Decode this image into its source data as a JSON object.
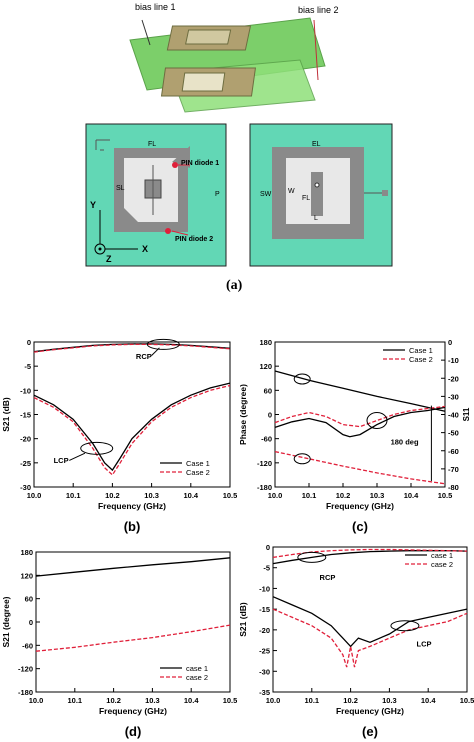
{
  "figure_a": {
    "bias_line_1": "bias line 1",
    "bias_line_2": "bias line 2",
    "fl_label": "FL",
    "sl_label": "SL",
    "pin_diode_1": "PIN diode 1",
    "pin_diode_2": "PIN diode 2",
    "y_axis": "Y",
    "x_axis": "X",
    "z_axis": "Z",
    "p_label": "P",
    "el_label": "EL",
    "sw_label": "SW",
    "wr_label": "W",
    "el2_label": "FL",
    "bottom_label": "L",
    "panel": "(a)"
  },
  "colors": {
    "substrate": "#62d7b5",
    "patch": "#8a8a8a",
    "slot": "#e8e8e8",
    "green3d": "#7ccf6a",
    "case1": "#000000",
    "case2": "#e0203a"
  },
  "chart_data": [
    {
      "id": "b",
      "panel": "(b)",
      "type": "line",
      "xlabel": "Frequency (GHz)",
      "ylabel": "S21 (dB)",
      "xlim": [
        10.0,
        10.5
      ],
      "ylim": [
        -30,
        0
      ],
      "xticks": [
        "10.0",
        "10.1",
        "10.2",
        "10.3",
        "10.4",
        "10.5"
      ],
      "yticks": [
        "0",
        "-5",
        "-10",
        "-15",
        "-20",
        "-25",
        "-30"
      ],
      "legend": "bottom-right",
      "annotations": [
        "RCP",
        "LCP"
      ],
      "series": [
        {
          "name": "Case 1",
          "color": "#000000",
          "dash": false,
          "x": [
            10.0,
            10.05,
            10.1,
            10.15,
            10.2,
            10.25,
            10.3,
            10.35,
            10.4,
            10.45,
            10.5
          ],
          "y": [
            -2.0,
            -1.5,
            -1.1,
            -0.7,
            -0.5,
            -0.4,
            -0.4,
            -0.5,
            -0.7,
            -1.0,
            -1.3
          ]
        },
        {
          "name": "Case 2",
          "color": "#e0203a",
          "dash": true,
          "x": [
            10.0,
            10.05,
            10.1,
            10.15,
            10.2,
            10.25,
            10.3,
            10.35,
            10.4,
            10.45,
            10.5
          ],
          "y": [
            -2.1,
            -1.6,
            -1.2,
            -0.8,
            -0.6,
            -0.5,
            -0.5,
            -0.6,
            -0.8,
            -1.1,
            -1.4
          ]
        },
        {
          "name": "Case 1",
          "color": "#000000",
          "dash": false,
          "x": [
            10.0,
            10.05,
            10.1,
            10.15,
            10.18,
            10.2,
            10.22,
            10.25,
            10.3,
            10.35,
            10.4,
            10.45,
            10.5
          ],
          "y": [
            -11,
            -13,
            -16,
            -21,
            -25,
            -26.5,
            -24,
            -20,
            -16,
            -13,
            -11,
            -9.5,
            -8.5
          ]
        },
        {
          "name": "Case 2",
          "color": "#e0203a",
          "dash": true,
          "x": [
            10.0,
            10.05,
            10.1,
            10.15,
            10.18,
            10.2,
            10.22,
            10.25,
            10.3,
            10.35,
            10.4,
            10.45,
            10.5
          ],
          "y": [
            -11.5,
            -13.5,
            -16.5,
            -22,
            -26,
            -27.5,
            -25,
            -21,
            -16.5,
            -13.5,
            -11.5,
            -10,
            -9
          ]
        }
      ]
    },
    {
      "id": "c",
      "panel": "(c)",
      "type": "line",
      "xlabel": "Frequency (GHz)",
      "ylabel": "Phase (degree)",
      "ylabel_right": "S11",
      "xlim": [
        10.0,
        10.5
      ],
      "ylim": [
        -180,
        180
      ],
      "xticks": [
        "10.0",
        "10.1",
        "10.2",
        "10.3",
        "10.4",
        "10.5"
      ],
      "yticks": [
        "180",
        "120",
        "60",
        "0",
        "-60",
        "-120",
        "-180"
      ],
      "yticks_right": [
        "0",
        "-10",
        "-20",
        "-30",
        "-40",
        "-50",
        "-60",
        "-70",
        "-80"
      ],
      "legend": "top-right",
      "annotations": [
        "180 deg"
      ],
      "series": [
        {
          "name": "Case 1",
          "color": "#000000",
          "dash": false,
          "x": [
            10.0,
            10.1,
            10.2,
            10.3,
            10.4,
            10.5
          ],
          "y": [
            108,
            85,
            65,
            45,
            27,
            8
          ]
        },
        {
          "name": "Case 2",
          "color": "#e0203a",
          "dash": true,
          "x": [
            10.0,
            10.1,
            10.2,
            10.3,
            10.4,
            10.5
          ],
          "y": [
            -92,
            -110,
            -128,
            -145,
            -160,
            -172
          ]
        },
        {
          "name": "Case 1",
          "color": "#000000",
          "dash": false,
          "x": [
            10.0,
            10.05,
            10.1,
            10.15,
            10.2,
            10.22,
            10.25,
            10.3,
            10.35,
            10.4,
            10.45,
            10.5
          ],
          "y": [
            -32,
            -18,
            -10,
            -20,
            -50,
            -55,
            -50,
            -25,
            -5,
            5,
            10,
            18
          ]
        },
        {
          "name": "Case 2",
          "color": "#e0203a",
          "dash": true,
          "x": [
            10.0,
            10.05,
            10.1,
            10.15,
            10.2,
            10.25,
            10.3,
            10.35,
            10.4,
            10.45,
            10.5
          ],
          "y": [
            -20,
            -5,
            5,
            -5,
            -25,
            -30,
            -15,
            0,
            10,
            15,
            20
          ]
        }
      ]
    },
    {
      "id": "d",
      "panel": "(d)",
      "type": "line",
      "xlabel": "Frequency (GHz)",
      "ylabel": "S21 (degree)",
      "xlim": [
        10.0,
        10.5
      ],
      "ylim": [
        -180,
        180
      ],
      "xticks": [
        "10.0",
        "10.1",
        "10.2",
        "10.3",
        "10.4",
        "10.5"
      ],
      "yticks": [
        "180",
        "120",
        "60",
        "0",
        "-60",
        "-120",
        "-180"
      ],
      "legend": "bottom-right",
      "series": [
        {
          "name": "case 1",
          "color": "#000000",
          "dash": false,
          "x": [
            10.0,
            10.1,
            10.2,
            10.3,
            10.4,
            10.5
          ],
          "y": [
            118,
            128,
            138,
            147,
            155,
            165
          ]
        },
        {
          "name": "case 2",
          "color": "#e0203a",
          "dash": true,
          "x": [
            10.0,
            10.1,
            10.2,
            10.3,
            10.4,
            10.5
          ],
          "y": [
            -75,
            -65,
            -52,
            -40,
            -25,
            -8
          ]
        }
      ]
    },
    {
      "id": "e",
      "panel": "(e)",
      "type": "line",
      "xlabel": "Frequency (GHz)",
      "ylabel": "S21 (dB)",
      "xlim": [
        10.0,
        10.5
      ],
      "ylim": [
        -35,
        0
      ],
      "xticks": [
        "10.0",
        "10.1",
        "10.2",
        "10.3",
        "10.4",
        "10.5"
      ],
      "yticks": [
        "0",
        "-5",
        "-10",
        "-15",
        "-20",
        "-25",
        "-30",
        "-35"
      ],
      "legend": "top-right",
      "annotations": [
        "RCP",
        "LCP"
      ],
      "series": [
        {
          "name": "case 1",
          "color": "#000000",
          "dash": false,
          "x": [
            10.0,
            10.05,
            10.1,
            10.15,
            10.2,
            10.25,
            10.3,
            10.35,
            10.4,
            10.45,
            10.5
          ],
          "y": [
            -4,
            -3.2,
            -2.5,
            -1.8,
            -1.4,
            -1.1,
            -1.0,
            -0.9,
            -0.9,
            -0.9,
            -1.0
          ]
        },
        {
          "name": "case 2",
          "color": "#e0203a",
          "dash": true,
          "x": [
            10.0,
            10.05,
            10.1,
            10.15,
            10.2,
            10.25,
            10.3,
            10.35,
            10.4,
            10.45,
            10.5
          ],
          "y": [
            -2.5,
            -1.8,
            -1.2,
            -0.9,
            -0.7,
            -0.6,
            -0.6,
            -0.7,
            -0.8,
            -0.9,
            -1.0
          ]
        },
        {
          "name": "case 1",
          "color": "#000000",
          "dash": false,
          "x": [
            10.0,
            10.05,
            10.1,
            10.15,
            10.18,
            10.2,
            10.22,
            10.25,
            10.3,
            10.35,
            10.4,
            10.45,
            10.5
          ],
          "y": [
            -12,
            -14,
            -16,
            -19,
            -22,
            -24,
            -22,
            -23,
            -21,
            -18,
            -17,
            -16,
            -15
          ]
        },
        {
          "name": "case 2",
          "color": "#e0203a",
          "dash": true,
          "x": [
            10.0,
            10.05,
            10.1,
            10.15,
            10.18,
            10.19,
            10.2,
            10.21,
            10.22,
            10.25,
            10.3,
            10.35,
            10.4,
            10.45,
            10.5
          ],
          "y": [
            -15,
            -17,
            -19,
            -22,
            -26,
            -29,
            -24,
            -29,
            -25,
            -24,
            -22,
            -20,
            -19,
            -18,
            -16
          ]
        }
      ]
    }
  ]
}
